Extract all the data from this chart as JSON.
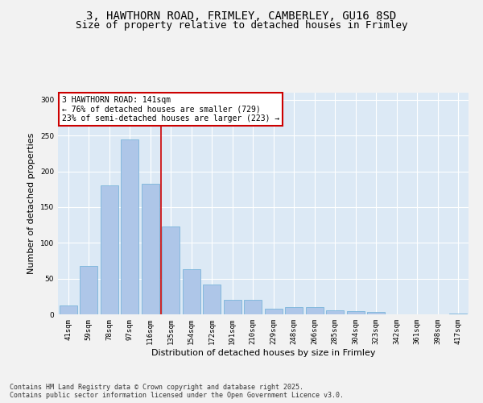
{
  "title_line1": "3, HAWTHORN ROAD, FRIMLEY, CAMBERLEY, GU16 8SD",
  "title_line2": "Size of property relative to detached houses in Frimley",
  "xlabel": "Distribution of detached houses by size in Frimley",
  "ylabel": "Number of detached properties",
  "categories": [
    "41sqm",
    "59sqm",
    "78sqm",
    "97sqm",
    "116sqm",
    "135sqm",
    "154sqm",
    "172sqm",
    "191sqm",
    "210sqm",
    "229sqm",
    "248sqm",
    "266sqm",
    "285sqm",
    "304sqm",
    "323sqm",
    "342sqm",
    "361sqm",
    "398sqm",
    "417sqm"
  ],
  "values": [
    12,
    68,
    180,
    245,
    183,
    123,
    63,
    42,
    20,
    20,
    8,
    10,
    10,
    6,
    4,
    3,
    0,
    0,
    0,
    1
  ],
  "bar_color": "#aec6e8",
  "bar_edge_color": "#6baed6",
  "annotation_title": "3 HAWTHORN ROAD: 141sqm",
  "annotation_line1": "← 76% of detached houses are smaller (729)",
  "annotation_line2": "23% of semi-detached houses are larger (223) →",
  "annotation_box_color": "#cc0000",
  "annotation_bg": "#ffffff",
  "ylim": [
    0,
    310
  ],
  "yticks": [
    0,
    50,
    100,
    150,
    200,
    250,
    300
  ],
  "plot_bg": "#dce9f5",
  "fig_bg": "#f2f2f2",
  "grid_color": "#ffffff",
  "footer_line1": "Contains HM Land Registry data © Crown copyright and database right 2025.",
  "footer_line2": "Contains public sector information licensed under the Open Government Licence v3.0.",
  "red_line_x": 4.5,
  "title_fontsize": 10,
  "subtitle_fontsize": 9,
  "axis_label_fontsize": 8,
  "tick_fontsize": 6.5,
  "annotation_fontsize": 7,
  "footer_fontsize": 6
}
